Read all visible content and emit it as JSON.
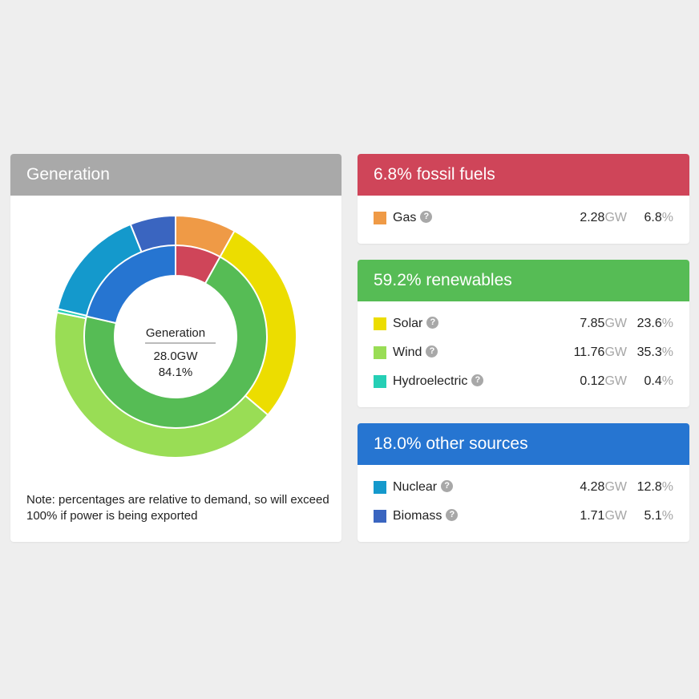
{
  "generation": {
    "title": "Generation",
    "center_label": "Generation",
    "center_gw": "28.0GW",
    "center_pct": "84.1%",
    "note": "Note: percentages are relative to demand, so will exceed 100% if power is being exported"
  },
  "chart_data": {
    "type": "pie",
    "title": "Generation",
    "inner_ring": [
      {
        "name": "fossil fuels",
        "value": 6.8,
        "color": "#cf4559"
      },
      {
        "name": "renewables",
        "value": 59.2,
        "color": "#56bc55"
      },
      {
        "name": "other sources",
        "value": 18.0,
        "color": "#2675d1"
      }
    ],
    "outer_ring": [
      {
        "name": "Gas",
        "value": 6.8,
        "color": "#ef9a46"
      },
      {
        "name": "Solar",
        "value": 23.6,
        "color": "#ecdd00"
      },
      {
        "name": "Wind",
        "value": 35.3,
        "color": "#99dd55"
      },
      {
        "name": "Hydroelectric",
        "value": 0.4,
        "color": "#25cfb5"
      },
      {
        "name": "Nuclear",
        "value": 12.8,
        "color": "#1499cc"
      },
      {
        "name": "Biomass",
        "value": 5.1,
        "color": "#3a65c0"
      }
    ]
  },
  "groups": [
    {
      "title": "6.8% fossil fuels",
      "color": "#cf4559",
      "rows": [
        {
          "name": "Gas",
          "gw": "2.28",
          "unit": "GW",
          "pct": "6.8",
          "pct_unit": "%",
          "color": "#ef9a46"
        }
      ]
    },
    {
      "title": "59.2% renewables",
      "color": "#56bc55",
      "rows": [
        {
          "name": "Solar",
          "gw": "7.85",
          "unit": "GW",
          "pct": "23.6",
          "pct_unit": "%",
          "color": "#ecdd00"
        },
        {
          "name": "Wind",
          "gw": "11.76",
          "unit": "GW",
          "pct": "35.3",
          "pct_unit": "%",
          "color": "#99dd55"
        },
        {
          "name": "Hydroelectric",
          "gw": "0.12",
          "unit": "GW",
          "pct": "0.4",
          "pct_unit": "%",
          "color": "#25cfb5"
        }
      ]
    },
    {
      "title": "18.0% other sources",
      "color": "#2675d1",
      "rows": [
        {
          "name": "Nuclear",
          "gw": "4.28",
          "unit": "GW",
          "pct": "12.8",
          "pct_unit": "%",
          "color": "#1499cc"
        },
        {
          "name": "Biomass",
          "gw": "1.71",
          "unit": "GW",
          "pct": "5.1",
          "pct_unit": "%",
          "color": "#3a65c0"
        }
      ]
    }
  ],
  "help_glyph": "?"
}
